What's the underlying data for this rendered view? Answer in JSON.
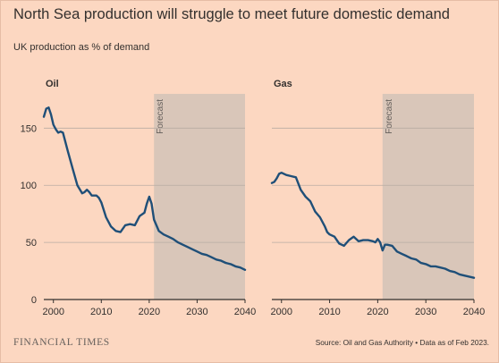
{
  "header": {
    "title": "North Sea production will struggle to meet future domestic demand",
    "subtitle": "UK production as % of demand"
  },
  "footer": {
    "logo": "FINANCIAL TIMES",
    "source": "Source: Oil and Gas Authority • Data as of Feb 2023."
  },
  "colors": {
    "background": "#fcd7c1",
    "line": "#1f4f78",
    "forecast_band": "#d9c6b9",
    "grid": "#b8aca3"
  },
  "chart_data": [
    {
      "type": "line",
      "title": "Oil",
      "forecast_label": "Forecast",
      "forecast_start": 2021,
      "xlim": [
        1998,
        2040
      ],
      "ylim": [
        0,
        180
      ],
      "xticks": [
        2000,
        2010,
        2020,
        2030,
        2040
      ],
      "yticks": [
        0,
        50,
        100,
        150
      ],
      "grid": true,
      "series": [
        {
          "x": [
            1998,
            1998.5,
            1999,
            1999.5,
            2000,
            2000.5,
            2001,
            2001.5,
            2002,
            2003,
            2004,
            2005,
            2006,
            2006.5,
            2007,
            2007.5,
            2008,
            2008.5,
            2009,
            2009.5,
            2010,
            2011,
            2012,
            2013,
            2014,
            2015,
            2016,
            2017,
            2018,
            2019,
            2019.5,
            2020,
            2020.5,
            2021,
            2022,
            2023,
            2024,
            2025,
            2026,
            2027,
            2028,
            2029,
            2030,
            2031,
            2032,
            2033,
            2034,
            2035,
            2036,
            2037,
            2038,
            2039,
            2040
          ],
          "y": [
            160,
            167,
            168,
            162,
            153,
            149,
            146,
            147,
            146,
            130,
            115,
            100,
            93,
            94,
            96,
            94,
            91,
            91,
            91,
            89,
            85,
            72,
            64,
            60,
            59,
            65,
            66,
            65,
            73,
            76,
            84,
            90,
            84,
            70,
            60,
            57,
            55,
            53,
            50,
            48,
            46,
            44,
            42,
            40,
            39,
            37,
            35,
            34,
            32,
            31,
            29,
            28,
            26
          ]
        }
      ]
    },
    {
      "type": "line",
      "title": "Gas",
      "forecast_label": "Forecast",
      "forecast_start": 2021,
      "xlim": [
        1998,
        2040
      ],
      "ylim": [
        0,
        180
      ],
      "xticks": [
        2000,
        2010,
        2020,
        2030,
        2040
      ],
      "yticks": [
        0,
        50,
        100,
        150
      ],
      "grid": true,
      "series": [
        {
          "x": [
            1998,
            1998.5,
            1999,
            1999.5,
            2000,
            2001,
            2002,
            2003,
            2004,
            2005,
            2006,
            2007,
            2008,
            2009,
            2009.5,
            2010,
            2011,
            2012,
            2013,
            2014,
            2015,
            2016,
            2017,
            2018,
            2019,
            2019.5,
            2020,
            2020.5,
            2021,
            2021.5,
            2022,
            2023,
            2024,
            2025,
            2026,
            2027,
            2028,
            2029,
            2030,
            2031,
            2032,
            2033,
            2034,
            2035,
            2036,
            2037,
            2038,
            2039,
            2040
          ],
          "y": [
            102,
            103,
            106,
            110,
            111,
            109,
            108,
            107,
            96,
            90,
            86,
            77,
            72,
            64,
            59,
            57,
            55,
            49,
            47,
            52,
            55,
            51,
            52,
            52,
            51,
            50,
            53,
            50,
            43,
            48,
            48,
            47,
            42,
            40,
            38,
            36,
            35,
            32,
            31,
            29,
            29,
            28,
            27,
            25,
            24,
            22,
            21,
            20,
            19
          ]
        }
      ]
    }
  ]
}
